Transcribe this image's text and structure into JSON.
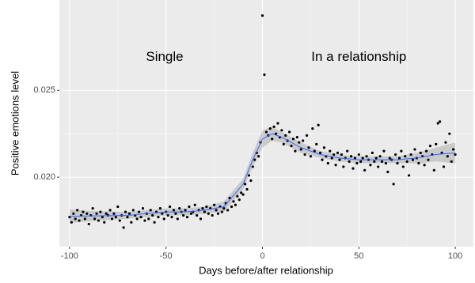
{
  "chart_data": {
    "type": "scatter",
    "xlabel": "Days before/after relationship",
    "ylabel": "Positive emotions level",
    "xlim": [
      -105.3,
      109.4
    ],
    "ylim": [
      0.016,
      0.0302
    ],
    "xticks": [
      -100,
      -50,
      0,
      50,
      100
    ],
    "yticks": [
      {
        "value": 0.02,
        "label": "0.020"
      },
      {
        "value": 0.025,
        "label": "0.025"
      }
    ],
    "grid": true,
    "color": "#000000",
    "annotations": [
      {
        "text": "Single",
        "x": -50.7,
        "y": 0.0269
      },
      {
        "text": "In a relationship",
        "x": 50,
        "y": 0.0269
      }
    ],
    "x": [
      -100,
      -99,
      -98,
      -97,
      -96,
      -95,
      -94,
      -93,
      -92,
      -91,
      -90,
      -89,
      -88,
      -87,
      -86,
      -85,
      -84,
      -83,
      -82,
      -81,
      -80,
      -79,
      -78,
      -77,
      -76,
      -75,
      -74,
      -73,
      -72,
      -71,
      -70,
      -69,
      -68,
      -67,
      -66,
      -65,
      -64,
      -63,
      -62,
      -61,
      -60,
      -59,
      -58,
      -57,
      -56,
      -55,
      -54,
      -53,
      -52,
      -51,
      -50,
      -49,
      -48,
      -47,
      -46,
      -45,
      -44,
      -43,
      -42,
      -41,
      -40,
      -39,
      -38,
      -37,
      -36,
      -35,
      -34,
      -33,
      -32,
      -31,
      -30,
      -29,
      -28,
      -27,
      -26,
      -25,
      -24,
      -23,
      -22,
      -21,
      -20,
      -19,
      -18,
      -17,
      -16,
      -15,
      -14,
      -13,
      -12,
      -11,
      -10,
      -9,
      -8,
      -7,
      -6,
      -5,
      -4,
      -3,
      -2,
      -1,
      0,
      1,
      2,
      3,
      4,
      5,
      6,
      7,
      8,
      9,
      10,
      11,
      12,
      13,
      14,
      15,
      16,
      17,
      18,
      19,
      20,
      21,
      22,
      23,
      24,
      25,
      26,
      27,
      28,
      29,
      30,
      31,
      32,
      33,
      34,
      35,
      36,
      37,
      38,
      39,
      40,
      41,
      42,
      43,
      44,
      45,
      46,
      47,
      48,
      49,
      50,
      51,
      52,
      53,
      54,
      55,
      56,
      57,
      58,
      59,
      60,
      61,
      62,
      63,
      64,
      65,
      66,
      67,
      68,
      69,
      70,
      71,
      72,
      73,
      74,
      75,
      76,
      77,
      78,
      79,
      80,
      81,
      82,
      83,
      84,
      85,
      86,
      87,
      88,
      89,
      90,
      91,
      92,
      93,
      94,
      95,
      96,
      97,
      98,
      99,
      100
    ],
    "values": [
      0.0177,
      0.0174,
      0.0179,
      0.0176,
      0.0181,
      0.0175,
      0.0178,
      0.018,
      0.0176,
      0.0179,
      0.0173,
      0.0178,
      0.0182,
      0.0176,
      0.0179,
      0.0175,
      0.018,
      0.0177,
      0.0174,
      0.0179,
      0.0178,
      0.0181,
      0.0176,
      0.0179,
      0.0177,
      0.0183,
      0.0175,
      0.0178,
      0.0171,
      0.018,
      0.0177,
      0.0179,
      0.0174,
      0.0181,
      0.0178,
      0.0176,
      0.018,
      0.0177,
      0.0182,
      0.0175,
      0.0179,
      0.0176,
      0.0181,
      0.0178,
      0.0174,
      0.018,
      0.0177,
      0.0182,
      0.0179,
      0.0176,
      0.018,
      0.0178,
      0.0183,
      0.0177,
      0.0181,
      0.0179,
      0.0176,
      0.0182,
      0.018,
      0.0178,
      0.0181,
      0.0177,
      0.0183,
      0.0179,
      0.018,
      0.0184,
      0.0178,
      0.0181,
      0.0176,
      0.0182,
      0.018,
      0.0183,
      0.0179,
      0.0182,
      0.0178,
      0.0184,
      0.0181,
      0.0179,
      0.0183,
      0.018,
      0.0182,
      0.0185,
      0.0181,
      0.0188,
      0.0183,
      0.0186,
      0.0184,
      0.0189,
      0.0187,
      0.0191,
      0.019,
      0.0196,
      0.0193,
      0.0201,
      0.0198,
      0.0206,
      0.021,
      0.0214,
      0.0212,
      0.022,
      0.0293,
      0.0259,
      0.0226,
      0.0224,
      0.0228,
      0.0222,
      0.0229,
      0.0225,
      0.0231,
      0.0223,
      0.0227,
      0.0219,
      0.0224,
      0.0221,
      0.0226,
      0.0218,
      0.0222,
      0.0215,
      0.0223,
      0.022,
      0.0216,
      0.0221,
      0.0213,
      0.0224,
      0.0217,
      0.0212,
      0.0228,
      0.0215,
      0.0219,
      0.023,
      0.0214,
      0.021,
      0.0217,
      0.0212,
      0.0208,
      0.0215,
      0.0211,
      0.0213,
      0.0207,
      0.0214,
      0.021,
      0.0213,
      0.0206,
      0.0211,
      0.0215,
      0.0209,
      0.0212,
      0.0205,
      0.0211,
      0.0208,
      0.0213,
      0.0209,
      0.0211,
      0.0204,
      0.0212,
      0.021,
      0.0207,
      0.0214,
      0.0209,
      0.0211,
      0.0206,
      0.0212,
      0.0209,
      0.0215,
      0.0208,
      0.0203,
      0.0211,
      0.021,
      0.0196,
      0.0213,
      0.0208,
      0.0211,
      0.0215,
      0.0206,
      0.0212,
      0.0209,
      0.0201,
      0.0213,
      0.021,
      0.0216,
      0.0211,
      0.0208,
      0.0214,
      0.0212,
      0.0207,
      0.0215,
      0.021,
      0.0218,
      0.0213,
      0.0204,
      0.0219,
      0.0231,
      0.0232,
      0.0214,
      0.0206,
      0.022,
      0.0212,
      0.0225,
      0.0209,
      0.0216,
      0.0213
    ],
    "smooth": {
      "color": "#3366ff",
      "band_color": "#999999",
      "x": [
        -100,
        -90,
        -80,
        -70,
        -60,
        -50,
        -40,
        -30,
        -20,
        -10,
        -5,
        0,
        5,
        10,
        20,
        30,
        40,
        50,
        60,
        70,
        80,
        90,
        100
      ],
      "values": [
        0.01775,
        0.01776,
        0.01778,
        0.0178,
        0.0179,
        0.018,
        0.018,
        0.0181,
        0.0183,
        0.0196,
        0.021,
        0.0222,
        0.0225,
        0.0223,
        0.0217,
        0.0213,
        0.0211,
        0.021,
        0.021,
        0.021,
        0.0211,
        0.0213,
        0.0214
      ],
      "lower": [
        0.01735,
        0.01746,
        0.01753,
        0.0176,
        0.0177,
        0.0178,
        0.0178,
        0.0179,
        0.018,
        0.0193,
        0.0206,
        0.0217,
        0.0221,
        0.022,
        0.0214,
        0.0211,
        0.0209,
        0.0208,
        0.0208,
        0.0208,
        0.0208,
        0.0209,
        0.0208
      ],
      "upper": [
        0.01815,
        0.01806,
        0.01803,
        0.018,
        0.0181,
        0.0182,
        0.0182,
        0.0183,
        0.0186,
        0.0199,
        0.0214,
        0.0227,
        0.0229,
        0.0226,
        0.022,
        0.0215,
        0.0213,
        0.0212,
        0.0212,
        0.0212,
        0.0214,
        0.0217,
        0.022
      ]
    }
  }
}
